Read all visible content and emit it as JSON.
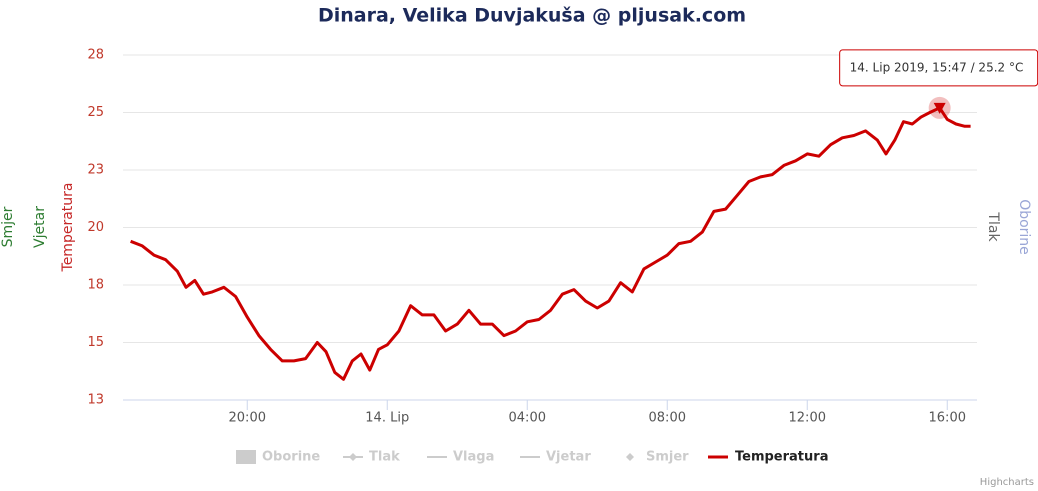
{
  "chart_data": {
    "type": "line",
    "title": "Dinara, Velika Duvjakuša @ pljusak.com",
    "y_axis_titles": [
      {
        "text": "Smjer",
        "color": "#2e7d32"
      },
      {
        "text": "Vjetar",
        "color": "#2e7d32"
      },
      {
        "text": "Temperatura",
        "color": "#c62828"
      }
    ],
    "y2_axis_titles": [
      {
        "text": "Tlak",
        "color": "#666666"
      },
      {
        "text": "Oborine",
        "color": "#9aa6d6"
      }
    ],
    "x": [
      "2019-06-13T16:40",
      "2019-06-13T17:00",
      "2019-06-13T17:20",
      "2019-06-13T17:40",
      "2019-06-13T18:00",
      "2019-06-13T18:15",
      "2019-06-13T18:30",
      "2019-06-13T18:45",
      "2019-06-13T19:00",
      "2019-06-13T19:20",
      "2019-06-13T19:40",
      "2019-06-13T20:00",
      "2019-06-13T20:20",
      "2019-06-13T20:40",
      "2019-06-13T21:00",
      "2019-06-13T21:20",
      "2019-06-13T21:40",
      "2019-06-13T22:00",
      "2019-06-13T22:15",
      "2019-06-13T22:30",
      "2019-06-13T22:45",
      "2019-06-13T23:00",
      "2019-06-13T23:15",
      "2019-06-13T23:30",
      "2019-06-13T23:45",
      "2019-06-14T00:00",
      "2019-06-14T00:20",
      "2019-06-14T00:40",
      "2019-06-14T01:00",
      "2019-06-14T01:20",
      "2019-06-14T01:40",
      "2019-06-14T02:00",
      "2019-06-14T02:20",
      "2019-06-14T02:40",
      "2019-06-14T03:00",
      "2019-06-14T03:20",
      "2019-06-14T03:40",
      "2019-06-14T04:00",
      "2019-06-14T04:20",
      "2019-06-14T04:40",
      "2019-06-14T05:00",
      "2019-06-14T05:20",
      "2019-06-14T05:40",
      "2019-06-14T06:00",
      "2019-06-14T06:20",
      "2019-06-14T06:40",
      "2019-06-14T07:00",
      "2019-06-14T07:20",
      "2019-06-14T07:40",
      "2019-06-14T08:00",
      "2019-06-14T08:20",
      "2019-06-14T08:40",
      "2019-06-14T09:00",
      "2019-06-14T09:20",
      "2019-06-14T09:40",
      "2019-06-14T10:00",
      "2019-06-14T10:20",
      "2019-06-14T10:40",
      "2019-06-14T11:00",
      "2019-06-14T11:20",
      "2019-06-14T11:40",
      "2019-06-14T12:00",
      "2019-06-14T12:20",
      "2019-06-14T12:40",
      "2019-06-14T13:00",
      "2019-06-14T13:20",
      "2019-06-14T13:40",
      "2019-06-14T14:00",
      "2019-06-14T14:15",
      "2019-06-14T14:30",
      "2019-06-14T14:45",
      "2019-06-14T15:00",
      "2019-06-14T15:15",
      "2019-06-14T15:30",
      "2019-06-14T15:47",
      "2019-06-14T16:00",
      "2019-06-14T16:15",
      "2019-06-14T16:30",
      "2019-06-14T16:40"
    ],
    "series": [
      {
        "name": "Temperatura",
        "color": "#cc0000",
        "values": [
          19.4,
          19.2,
          18.8,
          18.6,
          18.1,
          17.4,
          17.7,
          17.1,
          17.2,
          17.4,
          17.0,
          16.1,
          15.3,
          14.7,
          14.2,
          14.2,
          14.3,
          15.0,
          14.6,
          13.7,
          13.4,
          14.2,
          14.5,
          13.8,
          14.7,
          14.9,
          15.5,
          16.6,
          16.2,
          16.2,
          15.5,
          15.8,
          16.4,
          15.8,
          15.8,
          15.3,
          15.5,
          15.9,
          16.0,
          16.4,
          17.1,
          17.3,
          16.8,
          16.5,
          16.8,
          17.6,
          17.2,
          18.2,
          18.5,
          18.8,
          19.3,
          19.4,
          19.8,
          20.7,
          20.8,
          21.4,
          22.0,
          22.2,
          22.3,
          22.7,
          22.9,
          23.2,
          23.1,
          23.6,
          23.9,
          24.0,
          24.2,
          23.8,
          23.2,
          23.8,
          24.6,
          24.5,
          24.8,
          25.0,
          25.2,
          24.7,
          24.5,
          24.4,
          24.4
        ]
      }
    ],
    "legend_items": [
      {
        "name": "Oborine",
        "visible": false
      },
      {
        "name": "Tlak",
        "visible": false
      },
      {
        "name": "Vlaga",
        "visible": false
      },
      {
        "name": "Vjetar",
        "visible": false
      },
      {
        "name": "Smjer",
        "visible": false
      }
    ],
    "ylim": [
      12.5,
      27.5
    ],
    "yticks": [
      {
        "value": 12.5,
        "label": "13"
      },
      15,
      {
        "value": 17.5,
        "label": "18"
      },
      20,
      {
        "value": 22.5,
        "label": "23"
      },
      25,
      {
        "value": 27.5,
        "label": "28"
      }
    ],
    "xlim": [
      "2019-06-13T16:27",
      "2019-06-14T16:51"
    ],
    "xticks": [
      {
        "value": "2019-06-13T20:00",
        "label": "20:00"
      },
      {
        "value": "2019-06-14T00:00",
        "label": "14. Lip"
      },
      {
        "value": "2019-06-14T04:00",
        "label": "04:00"
      },
      {
        "value": "2019-06-14T08:00",
        "label": "08:00"
      },
      {
        "value": "2019-06-14T12:00",
        "label": "12:00"
      },
      {
        "value": "2019-06-14T16:00",
        "label": "16:00"
      }
    ],
    "grid": true,
    "tooltip": {
      "x": "2019-06-14T15:47",
      "text": "14. Lip 2019, 15:47 / 25.2 °C"
    },
    "credits": "Highcharts"
  }
}
